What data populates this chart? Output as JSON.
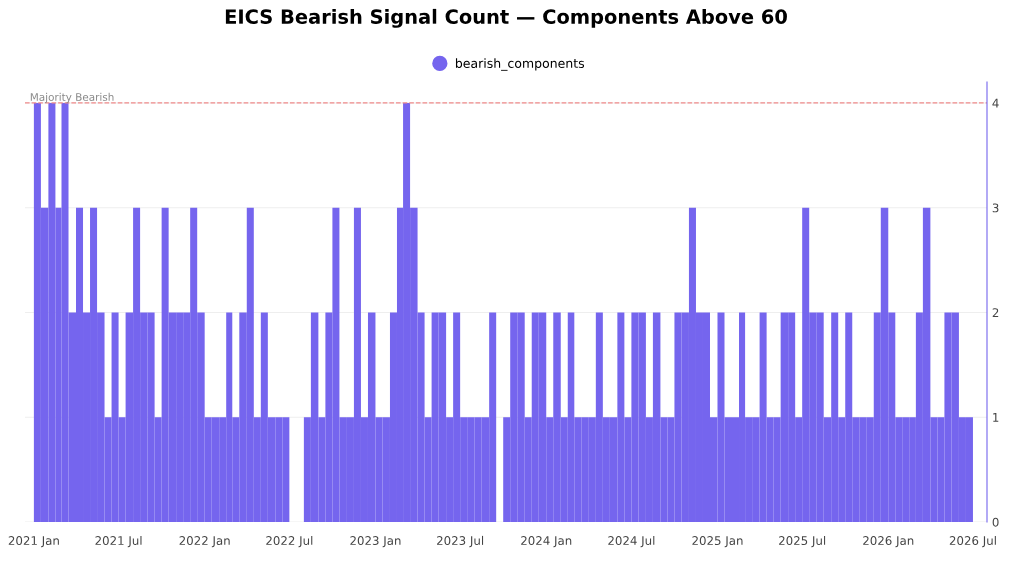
{
  "chart_data": {
    "type": "bar",
    "title": "EICS Bearish Signal Count — Components Above 60",
    "x": [
      "2021-01-01",
      "2021-01-16",
      "2021-02-01",
      "2021-02-16",
      "2021-03-01",
      "2021-03-16",
      "2021-04-01",
      "2021-04-16",
      "2021-05-01",
      "2021-05-16",
      "2021-06-01",
      "2021-06-16",
      "2021-07-01",
      "2021-07-16",
      "2021-08-01",
      "2021-08-16",
      "2021-09-01",
      "2021-09-16",
      "2021-10-01",
      "2021-10-16",
      "2021-11-01",
      "2021-11-16",
      "2021-12-01",
      "2021-12-16",
      "2022-01-01",
      "2022-01-16",
      "2022-02-01",
      "2022-02-16",
      "2022-03-01",
      "2022-03-16",
      "2022-04-01",
      "2022-04-16",
      "2022-05-01",
      "2022-05-16",
      "2022-06-01",
      "2022-06-16",
      "2022-07-01",
      "2022-07-16",
      "2022-08-01",
      "2022-08-16",
      "2022-09-01",
      "2022-09-16",
      "2022-10-01",
      "2022-10-16",
      "2022-11-01",
      "2022-11-16",
      "2022-12-01",
      "2022-12-16",
      "2023-01-01",
      "2023-01-16",
      "2023-02-01",
      "2023-02-16",
      "2023-03-01",
      "2023-03-16",
      "2023-04-01",
      "2023-04-16",
      "2023-05-01",
      "2023-05-16",
      "2023-06-01",
      "2023-06-16",
      "2023-07-01",
      "2023-07-16",
      "2023-08-01",
      "2023-08-16",
      "2023-09-01",
      "2023-09-16",
      "2023-10-01",
      "2023-10-16",
      "2023-11-01",
      "2023-11-16",
      "2023-12-01",
      "2023-12-16",
      "2024-01-01",
      "2024-01-16",
      "2024-02-01",
      "2024-02-16",
      "2024-03-01",
      "2024-03-16",
      "2024-04-01",
      "2024-04-16",
      "2024-05-01",
      "2024-05-16",
      "2024-06-01",
      "2024-06-16",
      "2024-07-01",
      "2024-07-16",
      "2024-08-01",
      "2024-08-16",
      "2024-09-01",
      "2024-09-16",
      "2024-10-01",
      "2024-10-16",
      "2024-11-01",
      "2024-11-16",
      "2024-12-01",
      "2024-12-16",
      "2025-01-01",
      "2025-01-16",
      "2025-02-01",
      "2025-02-16",
      "2025-03-01",
      "2025-03-16",
      "2025-04-01",
      "2025-04-16",
      "2025-05-01",
      "2025-05-16",
      "2025-06-01",
      "2025-06-16",
      "2025-07-01",
      "2025-07-16",
      "2025-08-01",
      "2025-08-16",
      "2025-09-01",
      "2025-09-16",
      "2025-10-01",
      "2025-10-16",
      "2025-11-01",
      "2025-11-16",
      "2025-12-01",
      "2025-12-16",
      "2026-01-01",
      "2026-01-16",
      "2026-02-01",
      "2026-02-16",
      "2026-03-01",
      "2026-03-16",
      "2026-04-01",
      "2026-04-16",
      "2026-05-01",
      "2026-05-16",
      "2026-06-01",
      "2026-06-16"
    ],
    "series": [
      {
        "name": "bearish_components",
        "color": "#7565ee",
        "values": [
          4,
          3,
          4,
          3,
          4,
          2,
          3,
          2,
          3,
          2,
          1,
          2,
          1,
          2,
          3,
          2,
          2,
          1,
          3,
          2,
          2,
          2,
          3,
          2,
          1,
          1,
          1,
          2,
          1,
          2,
          3,
          1,
          2,
          1,
          1,
          1,
          0,
          0,
          1,
          2,
          1,
          2,
          3,
          1,
          1,
          3,
          1,
          2,
          1,
          1,
          2,
          3,
          4,
          3,
          2,
          1,
          2,
          2,
          1,
          2,
          1,
          1,
          1,
          1,
          2,
          0,
          1,
          2,
          2,
          1,
          2,
          2,
          1,
          2,
          1,
          2,
          1,
          1,
          1,
          2,
          1,
          1,
          2,
          1,
          2,
          2,
          1,
          2,
          1,
          1,
          2,
          2,
          3,
          2,
          2,
          1,
          2,
          1,
          1,
          2,
          1,
          1,
          2,
          1,
          1,
          2,
          2,
          1,
          3,
          2,
          2,
          1,
          2,
          1,
          2,
          1,
          1,
          1,
          2,
          3,
          2,
          1,
          1,
          1,
          2,
          3,
          1,
          1,
          2,
          2,
          1,
          1
        ]
      }
    ],
    "xlim": [
      "2020-12-13",
      "2026-07-31"
    ],
    "xticks": [
      {
        "value": "2021-01-01",
        "label": "2021 Jan"
      },
      {
        "value": "2021-07-01",
        "label": "2021 Jul"
      },
      {
        "value": "2022-01-01",
        "label": "2022 Jan"
      },
      {
        "value": "2022-07-01",
        "label": "2022 Jul"
      },
      {
        "value": "2023-01-01",
        "label": "2023 Jan"
      },
      {
        "value": "2023-07-01",
        "label": "2023 Jul"
      },
      {
        "value": "2024-01-01",
        "label": "2024 Jan"
      },
      {
        "value": "2024-07-01",
        "label": "2024 Jul"
      },
      {
        "value": "2025-01-01",
        "label": "2025 Jan"
      },
      {
        "value": "2025-07-01",
        "label": "2025 Jul"
      },
      {
        "value": "2026-01-01",
        "label": "2026 Jan"
      },
      {
        "value": "2026-07-01",
        "label": "2026 Jul"
      }
    ],
    "ylim": [
      0,
      4.2
    ],
    "yticks": [
      0,
      1,
      2,
      3,
      4
    ],
    "ref_lines": [
      {
        "axis": "y",
        "value": 4,
        "label": "Majority Bearish",
        "color": "#f08a8a",
        "line_style": "dashed"
      }
    ],
    "grid": "y",
    "legend": "top"
  }
}
